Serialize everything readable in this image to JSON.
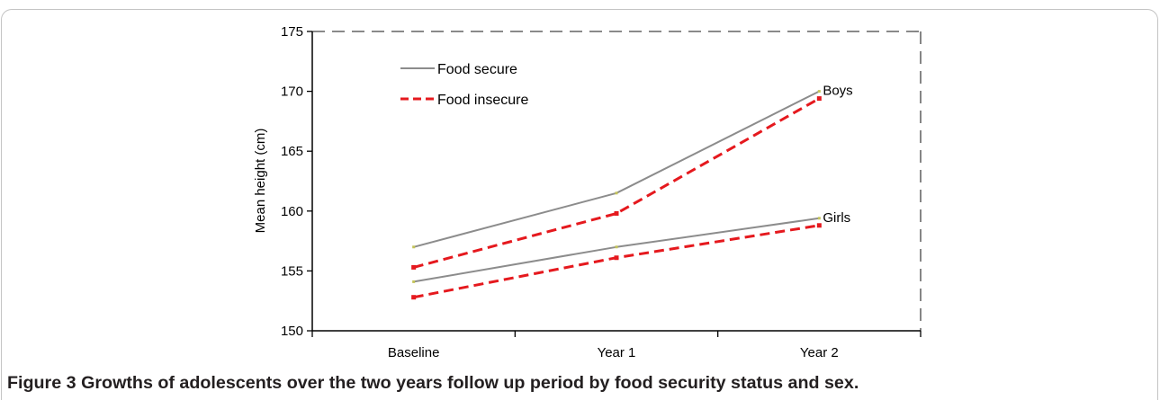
{
  "chart_data": {
    "type": "line",
    "categories": [
      "Baseline",
      "Year 1",
      "Year 2"
    ],
    "ylabel": "Mean height (cm)",
    "ylim": [
      150,
      175
    ],
    "yticks": [
      150,
      155,
      160,
      165,
      170,
      175
    ],
    "grid": false,
    "legend": {
      "placement": "top-left",
      "entries": [
        {
          "label": "Food secure",
          "color": "#8c8c8c",
          "style": "solid"
        },
        {
          "label": "Food insecure",
          "color": "#e5191e",
          "style": "dashed"
        }
      ]
    },
    "series": [
      {
        "name": "Food secure",
        "group": "Boys",
        "values": [
          157.0,
          161.5,
          170.0
        ]
      },
      {
        "name": "Food insecure",
        "group": "Boys",
        "values": [
          155.3,
          159.8,
          169.4
        ]
      },
      {
        "name": "Food secure",
        "group": "Girls",
        "values": [
          154.1,
          157.0,
          159.4
        ]
      },
      {
        "name": "Food insecure",
        "group": "Girls",
        "values": [
          152.8,
          156.1,
          158.8
        ]
      }
    ]
  },
  "caption": {
    "label": "Figure 3",
    "text": "Growths of adolescents over the two years follow up period by food security status and sex."
  }
}
